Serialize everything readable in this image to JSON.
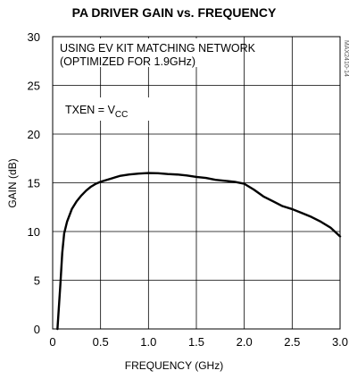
{
  "chart_data": {
    "type": "line",
    "title": "PA DRIVER GAIN vs. FREQUENCY",
    "xlabel": "FREQUENCY (GHz)",
    "ylabel": "GAIN (dB)",
    "xlim": [
      0,
      3.0
    ],
    "ylim": [
      0,
      30
    ],
    "x_ticks": [
      "0",
      "0.5",
      "1.0",
      "1.5",
      "2.0",
      "2.5",
      "3.0"
    ],
    "y_ticks": [
      "0",
      "5",
      "10",
      "15",
      "20",
      "25",
      "30"
    ],
    "grid": true,
    "annotations": {
      "line1": "USING EV KIT MATCHING NETWORK",
      "line2": "(OPTIMIZED FOR 1.9GHz)",
      "txen_main": "TXEN = V",
      "txen_sub": "CC",
      "watermark": "MAX2410-14"
    },
    "series": [
      {
        "color": "#000000",
        "x": [
          0.05,
          0.08,
          0.1,
          0.12,
          0.15,
          0.2,
          0.25,
          0.3,
          0.35,
          0.4,
          0.45,
          0.5,
          0.6,
          0.7,
          0.8,
          0.9,
          1.0,
          1.1,
          1.2,
          1.3,
          1.4,
          1.5,
          1.6,
          1.7,
          1.8,
          1.9,
          2.0,
          2.1,
          2.2,
          2.3,
          2.4,
          2.5,
          2.6,
          2.7,
          2.8,
          2.9,
          3.0
        ],
        "y": [
          0,
          4.5,
          7.8,
          9.8,
          11.0,
          12.3,
          13.1,
          13.7,
          14.2,
          14.6,
          14.9,
          15.1,
          15.4,
          15.7,
          15.85,
          15.95,
          16.0,
          15.98,
          15.9,
          15.85,
          15.75,
          15.6,
          15.5,
          15.3,
          15.2,
          15.1,
          14.9,
          14.3,
          13.6,
          13.1,
          12.6,
          12.3,
          11.9,
          11.5,
          11.0,
          10.4,
          9.5
        ]
      }
    ]
  }
}
